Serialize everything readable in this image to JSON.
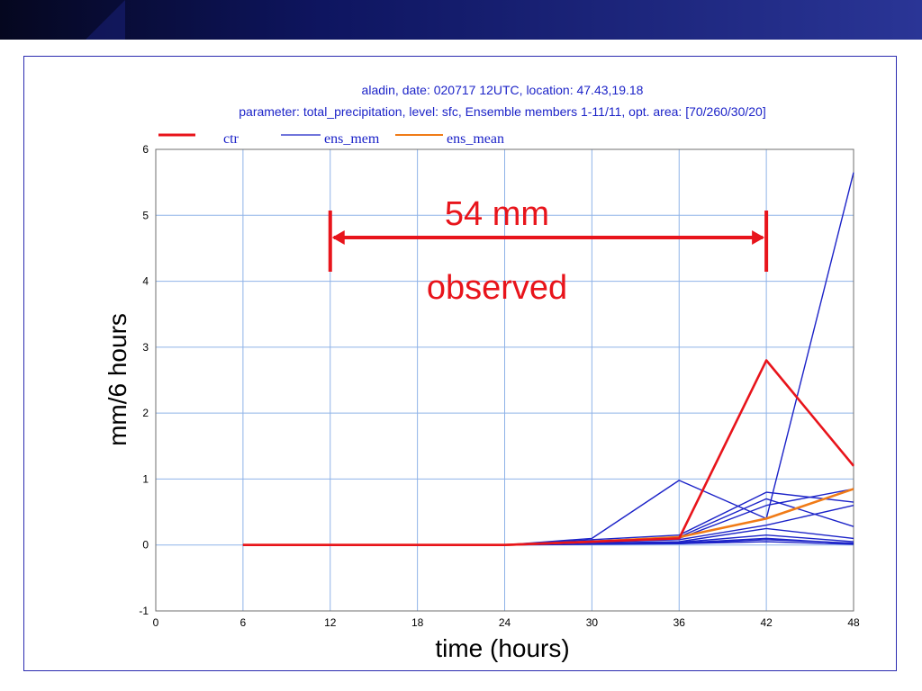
{
  "chart_data": {
    "type": "line",
    "title": "aladin, date: 020717 12UTC,   location: 47.43,19.18",
    "subtitle": "parameter: total_precipitation, level: sfc, Ensemble members 1-11/11, opt. area: [70/260/30/20]",
    "xlabel": "time (hours)",
    "ylabel": "mm/6 hours",
    "xlim": [
      0,
      48
    ],
    "ylim": [
      -1,
      6
    ],
    "xticks": [
      0,
      6,
      12,
      18,
      24,
      30,
      36,
      42,
      48
    ],
    "yticks": [
      -1,
      0,
      1,
      2,
      3,
      4,
      5,
      6
    ],
    "grid": true,
    "legend_position": "top",
    "legend": [
      {
        "label": "ctr",
        "color": "#e8141b"
      },
      {
        "label": "ens_mem",
        "color": "#1c23c8"
      },
      {
        "label": "ens_mean",
        "color": "#f07b17"
      }
    ],
    "x": [
      6,
      12,
      18,
      24,
      30,
      36,
      42,
      48
    ],
    "series": [
      {
        "name": "ens_mem",
        "color": "#1c23c8",
        "values": [
          0,
          0,
          0,
          0,
          0.1,
          0.98,
          0.4,
          5.65
        ]
      },
      {
        "name": "ens_mem",
        "color": "#1c23c8",
        "values": [
          0,
          0,
          0,
          0,
          0.08,
          0.15,
          0.8,
          0.65
        ]
      },
      {
        "name": "ens_mem",
        "color": "#1c23c8",
        "values": [
          0,
          0,
          0,
          0,
          0.06,
          0.12,
          0.7,
          0.28
        ]
      },
      {
        "name": "ens_mem",
        "color": "#1c23c8",
        "values": [
          0,
          0,
          0,
          0,
          0.05,
          0.1,
          0.6,
          0.85
        ]
      },
      {
        "name": "ens_mem",
        "color": "#1c23c8",
        "values": [
          0,
          0,
          0,
          0,
          0.04,
          0.08,
          0.3,
          0.6
        ]
      },
      {
        "name": "ens_mem",
        "color": "#1c23c8",
        "values": [
          0,
          0,
          0,
          0,
          0.03,
          0.05,
          0.25,
          0.1
        ]
      },
      {
        "name": "ens_mem",
        "color": "#1c23c8",
        "values": [
          0,
          0,
          0,
          0,
          0.03,
          0.04,
          0.15,
          0.05
        ]
      },
      {
        "name": "ens_mem",
        "color": "#1c23c8",
        "values": [
          0,
          0,
          0,
          0,
          0.02,
          0.03,
          0.1,
          0.02
        ]
      },
      {
        "name": "ens_mem",
        "color": "#1c23c8",
        "values": [
          0,
          0,
          0,
          0,
          0.02,
          0.02,
          0.08,
          0.03
        ]
      },
      {
        "name": "ens_mem",
        "color": "#1c23c8",
        "values": [
          0,
          0,
          0,
          0,
          0.01,
          0.02,
          0.05,
          0.01
        ]
      },
      {
        "name": "ens_mean",
        "color": "#f07b17",
        "values": [
          0,
          0,
          0,
          0,
          0.05,
          0.12,
          0.4,
          0.85
        ]
      },
      {
        "name": "ctr",
        "color": "#e8141b",
        "values": [
          0,
          0,
          0,
          0,
          0.05,
          0.1,
          2.8,
          1.2
        ]
      }
    ],
    "annotations": {
      "bracket": {
        "x_start": 12,
        "x_end": 42,
        "color": "#e8141b"
      },
      "amount": "54 mm",
      "note": "observed"
    }
  }
}
